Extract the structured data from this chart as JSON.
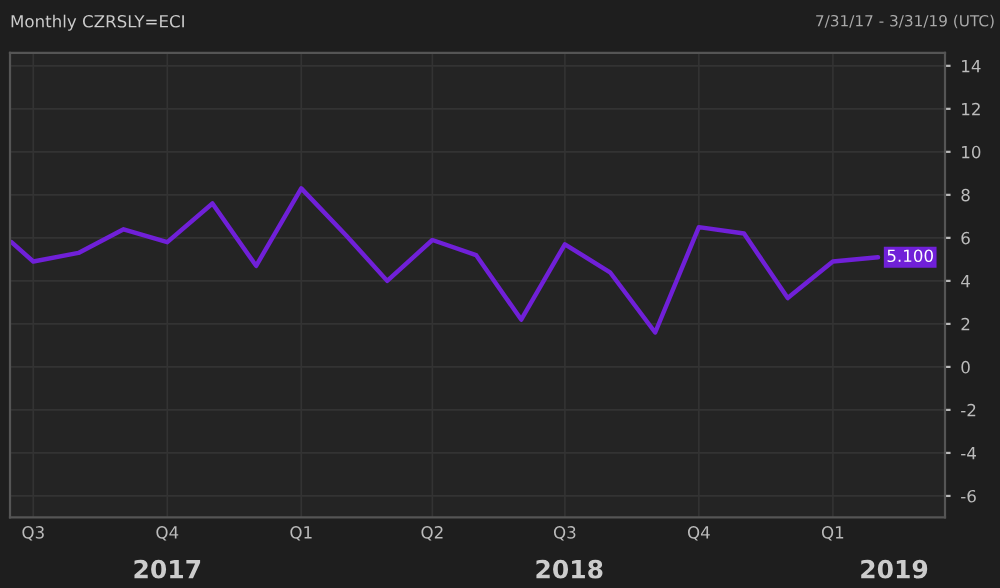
{
  "chart_data": {
    "type": "line",
    "title": "Monthly CZRSLY=ECI",
    "subtitle": "7/31/17 - 3/31/19 (UTC)",
    "x": [
      "2017-06-16",
      "2017-07-01",
      "2017-08-01",
      "2017-09-01",
      "2017-10-01",
      "2017-11-01",
      "2017-12-01",
      "2018-01-01",
      "2018-02-01",
      "2018-03-01",
      "2018-04-01",
      "2018-05-01",
      "2018-06-01",
      "2018-07-01",
      "2018-08-01",
      "2018-09-01",
      "2018-10-01",
      "2018-11-01",
      "2018-12-01",
      "2019-01-01",
      "2019-02-01"
    ],
    "series": [
      {
        "color": "#7020d8",
        "values": [
          5.8,
          4.9,
          5.3,
          6.4,
          5.8,
          7.6,
          4.7,
          8.3,
          6.1,
          4.0,
          5.9,
          5.2,
          2.2,
          5.7,
          4.4,
          1.6,
          6.5,
          6.2,
          3.2,
          4.9,
          5.1
        ],
        "value_labels": [
          null,
          null,
          null,
          null,
          null,
          null,
          null,
          null,
          null,
          null,
          null,
          null,
          null,
          null,
          null,
          null,
          null,
          null,
          null,
          null,
          "5.100"
        ]
      }
    ],
    "xlim": [
      "2017-06-15",
      "2019-03-19"
    ],
    "xticks": [
      {
        "value": "2017-07-01",
        "label": "Q3"
      },
      {
        "value": "2017-10-01",
        "label": "Q4"
      },
      {
        "value": "2018-01-01",
        "label": "Q1"
      },
      {
        "value": "2018-04-01",
        "label": "Q2"
      },
      {
        "value": "2018-07-01",
        "label": "Q3"
      },
      {
        "value": "2018-10-01",
        "label": "Q4"
      },
      {
        "value": "2019-01-01",
        "label": "Q1"
      }
    ],
    "x2lim": [
      "2017-06-15",
      "2019-03-19"
    ],
    "x2ticks": [
      {
        "value": "2017-10-01",
        "label": "2017"
      },
      {
        "value": "2018-07-04",
        "label": "2018"
      },
      {
        "value": "2019-02-12",
        "label": "2019"
      }
    ],
    "ylim": [
      -7,
      14.6
    ],
    "yticks": [
      -6,
      -4,
      -2,
      0,
      2,
      4,
      6,
      8,
      10,
      12,
      14
    ],
    "grid": true,
    "marker": "none",
    "line_style": "solid"
  }
}
